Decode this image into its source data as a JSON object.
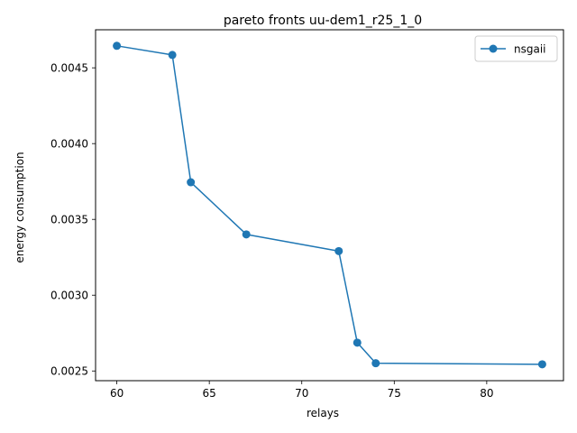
{
  "chart_data": {
    "type": "line",
    "title": "pareto fronts uu-dem1_r25_1_0",
    "xlabel": "relays",
    "ylabel": "energy consumption",
    "xlim": [
      58.85,
      84.15
    ],
    "ylim": [
      0.002436,
      0.004751
    ],
    "xticks": [
      60,
      65,
      70,
      75,
      80
    ],
    "xtick_labels": [
      "60",
      "65",
      "70",
      "75",
      "80"
    ],
    "yticks": [
      0.0025,
      0.003,
      0.0035,
      0.004,
      0.0045
    ],
    "ytick_labels": [
      "0.0025",
      "0.0030",
      "0.0035",
      "0.0040",
      "0.0045"
    ],
    "grid": false,
    "legend_position": "top-right",
    "series": [
      {
        "name": "nsgaii",
        "color": "#1f77b4",
        "marker": "circle",
        "x": [
          60,
          63,
          64,
          67,
          72,
          73,
          74,
          83
        ],
        "y": [
          0.004645,
          0.004585,
          0.003745,
          0.003401,
          0.003291,
          0.002687,
          0.002551,
          0.002544
        ]
      }
    ]
  }
}
